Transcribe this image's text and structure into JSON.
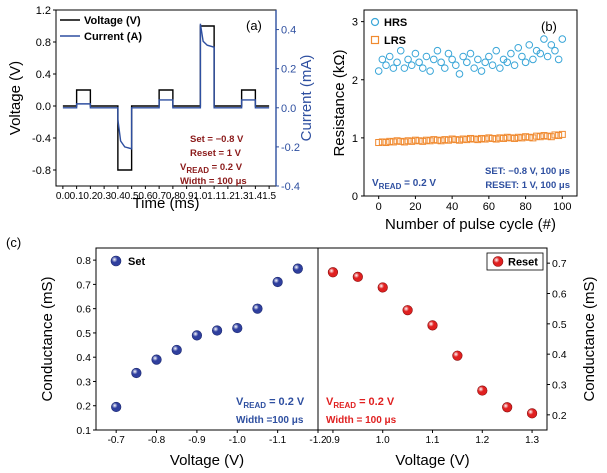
{
  "panel_labels": {
    "a": "(a)",
    "b": "(b)",
    "c": "(c)"
  },
  "chart_data": [
    {
      "panel": "(a)",
      "type": "line",
      "xlabel": "Time (ms)",
      "ylabel_left": "Voltage (V)",
      "ylabel_right": "Current (mA)",
      "xlim": [
        -0.05,
        1.55
      ],
      "ylim_left": [
        -1.0,
        1.2
      ],
      "ylim_right": [
        -0.4,
        0.5
      ],
      "x_ticks": [
        "0.0",
        "0.1",
        "0.2",
        "0.3",
        "0.4",
        "0.5",
        "0.6",
        "0.7",
        "0.8",
        "0.9",
        "1.0",
        "1.1",
        "1.2",
        "1.3",
        "1.4",
        "1.5"
      ],
      "y_ticks_left": [
        "-0.8",
        "-0.4",
        "0.0",
        "0.4",
        "0.8",
        "1.2"
      ],
      "y_ticks_right": [
        "-0.4",
        "-0.2",
        "0.0",
        "0.2",
        "0.4"
      ],
      "legend": [
        "Voltage (V)",
        "Current (A)"
      ],
      "annotations": [
        "Set = −0.8 V",
        "Reset = 1 V",
        "V_READ = 0.2 V",
        "Width = 100 μs"
      ],
      "series": [
        {
          "name": "Voltage (V)",
          "color": "#000000",
          "x": [
            0.0,
            0.1,
            0.1,
            0.2,
            0.2,
            0.4,
            0.4,
            0.5,
            0.5,
            0.7,
            0.7,
            0.8,
            0.8,
            1.0,
            1.0,
            1.1,
            1.1,
            1.3,
            1.3,
            1.4,
            1.4,
            1.5
          ],
          "y": [
            0.0,
            0.0,
            0.2,
            0.2,
            0.0,
            0.0,
            -0.8,
            -0.8,
            0.0,
            0.0,
            0.2,
            0.2,
            0.0,
            0.0,
            1.0,
            1.0,
            0.0,
            0.0,
            0.2,
            0.2,
            0.0,
            0.0
          ]
        },
        {
          "name": "Current (A)",
          "color": "#2e4fa0",
          "x": [
            0.0,
            0.1,
            0.1,
            0.2,
            0.2,
            0.4,
            0.4,
            0.42,
            0.45,
            0.5,
            0.5,
            0.7,
            0.7,
            0.8,
            0.8,
            1.0,
            1.0,
            1.02,
            1.05,
            1.1,
            1.1,
            1.3,
            1.3,
            1.4,
            1.4,
            1.5
          ],
          "y": [
            0.0,
            0.0,
            0.02,
            0.02,
            0.0,
            0.0,
            -0.06,
            -0.17,
            -0.2,
            -0.21,
            0.0,
            0.0,
            0.04,
            0.04,
            0.0,
            0.0,
            0.43,
            0.34,
            0.32,
            0.31,
            0.0,
            0.0,
            0.04,
            0.04,
            0.0,
            0.0
          ]
        }
      ]
    },
    {
      "panel": "(b)",
      "type": "scatter",
      "xlabel": "Number of pulse cycle (#)",
      "ylabel": "Resistance (kΩ)",
      "xlim": [
        -8,
        108
      ],
      "ylim": [
        0,
        3.2
      ],
      "x_ticks": [
        "0",
        "20",
        "40",
        "60",
        "80",
        "100"
      ],
      "y_ticks": [
        "0",
        "1",
        "2",
        "3"
      ],
      "annotations": [
        "V_READ = 0.2 V",
        "SET: −0.8 V, 100 μs",
        "RESET: 1 V, 100 μs"
      ],
      "series": [
        {
          "name": "HRS",
          "color": "#3aa6d8",
          "marker": "circle",
          "x": [
            0,
            2,
            4,
            6,
            8,
            10,
            12,
            14,
            16,
            18,
            20,
            22,
            24,
            26,
            28,
            30,
            32,
            34,
            36,
            38,
            40,
            42,
            44,
            46,
            48,
            50,
            52,
            54,
            56,
            58,
            60,
            62,
            64,
            66,
            68,
            70,
            72,
            74,
            76,
            78,
            80,
            82,
            84,
            86,
            88,
            90,
            92,
            94,
            96,
            98,
            100
          ],
          "y": [
            2.15,
            2.35,
            2.25,
            2.4,
            2.2,
            2.3,
            2.5,
            2.2,
            2.35,
            2.25,
            2.45,
            2.3,
            2.2,
            2.4,
            2.15,
            2.35,
            2.5,
            2.3,
            2.2,
            2.45,
            2.35,
            2.25,
            2.1,
            2.4,
            2.3,
            2.45,
            2.2,
            2.35,
            2.15,
            2.3,
            2.4,
            2.25,
            2.5,
            2.2,
            2.35,
            2.3,
            2.45,
            2.25,
            2.55,
            2.4,
            2.3,
            2.6,
            2.35,
            2.5,
            2.45,
            2.7,
            2.4,
            2.6,
            2.5,
            2.35,
            2.7
          ]
        },
        {
          "name": "LRS",
          "color": "#f08a30",
          "marker": "square",
          "x": [
            0,
            2,
            4,
            6,
            8,
            10,
            12,
            14,
            16,
            18,
            20,
            22,
            24,
            26,
            28,
            30,
            32,
            34,
            36,
            38,
            40,
            42,
            44,
            46,
            48,
            50,
            52,
            54,
            56,
            58,
            60,
            62,
            64,
            66,
            68,
            70,
            72,
            74,
            76,
            78,
            80,
            82,
            84,
            86,
            88,
            90,
            92,
            94,
            96,
            98,
            100
          ],
          "y": [
            0.92,
            0.93,
            0.92,
            0.94,
            0.93,
            0.95,
            0.94,
            0.93,
            0.95,
            0.94,
            0.96,
            0.95,
            0.94,
            0.96,
            0.95,
            0.97,
            0.96,
            0.95,
            0.97,
            0.96,
            0.98,
            0.97,
            0.96,
            0.98,
            0.97,
            0.99,
            0.98,
            0.97,
            0.99,
            0.98,
            1.0,
            0.99,
            0.98,
            1.0,
            0.99,
            1.01,
            1.0,
            0.99,
            1.01,
            1.0,
            1.02,
            1.01,
            1.0,
            1.03,
            1.02,
            1.04,
            1.03,
            1.02,
            1.05,
            1.04,
            1.06
          ]
        }
      ]
    },
    {
      "panel": "(c) left",
      "type": "scatter",
      "xlabel": "Voltage (V)",
      "ylabel": "Conductance (mS)",
      "xlim": [
        -0.65,
        -1.2
      ],
      "ylim": [
        0.1,
        0.85
      ],
      "x_ticks": [
        "-0.7",
        "-0.8",
        "-0.9",
        "-1.0",
        "-1.1",
        "-1.2"
      ],
      "y_ticks": [
        "0.1",
        "0.2",
        "0.3",
        "0.4",
        "0.5",
        "0.6",
        "0.7",
        "0.8"
      ],
      "legend": [
        "Set"
      ],
      "annotations": [
        "V_READ = 0.2 V",
        "Width =100 μs"
      ],
      "series": [
        {
          "name": "Set",
          "color": "#2f3f9e",
          "x": [
            -0.7,
            -0.75,
            -0.8,
            -0.85,
            -0.9,
            -0.95,
            -1.0,
            -1.05,
            -1.1,
            -1.15
          ],
          "y": [
            0.195,
            0.335,
            0.39,
            0.43,
            0.49,
            0.51,
            0.52,
            0.6,
            0.71,
            0.765
          ]
        }
      ]
    },
    {
      "panel": "(c) right",
      "type": "scatter",
      "xlabel": "Voltage (V)",
      "ylabel": "Conductance (mS)",
      "xlim": [
        0.87,
        1.33
      ],
      "ylim": [
        0.15,
        0.75
      ],
      "x_ticks": [
        "0.9",
        "1.0",
        "1.1",
        "1.2",
        "1.3"
      ],
      "y_ticks": [
        "0.2",
        "0.3",
        "0.4",
        "0.5",
        "0.6",
        "0.7"
      ],
      "legend": [
        "Reset"
      ],
      "annotations": [
        "V_READ = 0.2 V",
        "Width = 100 μs"
      ],
      "series": [
        {
          "name": "Reset",
          "color": "#e02020",
          "x": [
            0.9,
            0.95,
            1.0,
            1.05,
            1.1,
            1.15,
            1.2,
            1.25,
            1.3
          ],
          "y": [
            0.67,
            0.655,
            0.62,
            0.545,
            0.495,
            0.395,
            0.28,
            0.225,
            0.205
          ]
        }
      ]
    }
  ]
}
